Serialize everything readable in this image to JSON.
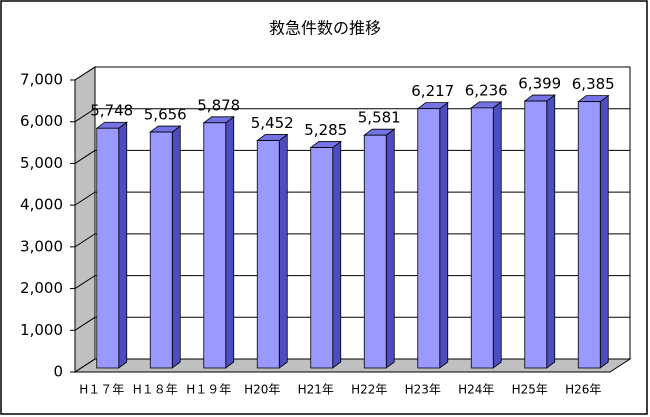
{
  "chart_data": {
    "type": "bar3d",
    "title": "救急件数の推移",
    "categories": [
      "H１７年",
      "H１８年",
      "H１９年",
      "H20年",
      "H21年",
      "H22年",
      "H23年",
      "H24年",
      "H25年",
      "H26年"
    ],
    "values": [
      5748,
      5656,
      5878,
      5452,
      5285,
      5581,
      6217,
      6236,
      6399,
      6385
    ],
    "value_labels": [
      "5,748",
      "5,656",
      "5,878",
      "5,452",
      "5,285",
      "5,581",
      "6,217",
      "6,236",
      "6,399",
      "6,385"
    ],
    "color": "#9999ff",
    "ylim": [
      0,
      7000
    ],
    "yticks": [
      0,
      {
        "value": 1000,
        "label": "1,000"
      },
      {
        "value": 2000,
        "label": "2,000"
      },
      {
        "value": 3000,
        "label": "3,000"
      },
      {
        "value": 4000,
        "label": "4,000"
      },
      {
        "value": 5000,
        "label": "5,000"
      },
      {
        "value": 6000,
        "label": "6,000"
      },
      {
        "value": 7000,
        "label": "7,000"
      }
    ],
    "grid": true
  }
}
